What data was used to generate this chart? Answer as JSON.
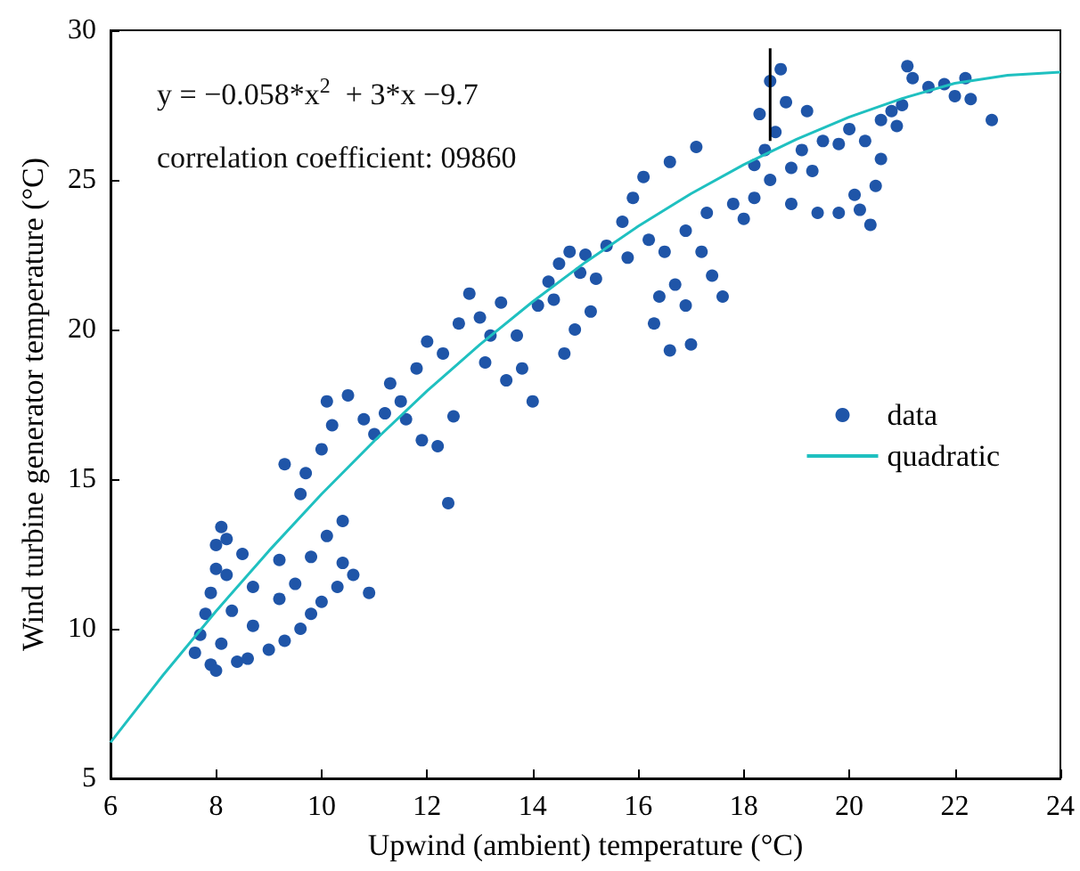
{
  "chart_data": {
    "type": "scatter",
    "xlabel": "Upwind (ambient) temperature (°C)",
    "ylabel": "Wind turbine generator temperature (°C)",
    "xlim": [
      6,
      24
    ],
    "xticks": [
      6,
      8,
      10,
      12,
      14,
      16,
      18,
      20,
      22,
      24
    ],
    "ylim": [
      5,
      30
    ],
    "yticks": [
      5,
      10,
      15,
      20,
      25,
      30
    ],
    "grid": false,
    "legend": "right",
    "marker": "circle",
    "annotations": [
      "y = −0.058*x$^{2}$  + 3*x −9.7",
      "correlation coefficient: 09860"
    ],
    "series": [
      {
        "name": "data",
        "color": "#1f55a8",
        "x": [
          7.6,
          7.7,
          7.8,
          7.9,
          8.0,
          8.0,
          8.1,
          8.2,
          8.2,
          8.3,
          8.1,
          7.9,
          8.0,
          8.4,
          8.6,
          9.0,
          9.3,
          9.6,
          9.8,
          10.0,
          10.3,
          10.6,
          10.9,
          10.4,
          9.5,
          9.2,
          8.7,
          8.5,
          8.7,
          9.2,
          9.8,
          10.1,
          10.4,
          9.6,
          9.3,
          9.7,
          10.0,
          10.2,
          10.1,
          10.5,
          10.8,
          11.0,
          11.2,
          11.5,
          11.3,
          11.8,
          11.6,
          11.9,
          12.2,
          12.5,
          12.4,
          12.0,
          12.3,
          12.6,
          12.8,
          13.0,
          13.2,
          13.4,
          13.1,
          13.5,
          13.8,
          14.0,
          13.7,
          14.1,
          14.3,
          14.5,
          14.7,
          14.4,
          14.9,
          15.0,
          15.2,
          14.8,
          14.6,
          15.1,
          15.4,
          15.7,
          15.9,
          16.1,
          15.8,
          16.2,
          16.5,
          16.7,
          16.4,
          16.9,
          17.2,
          17.4,
          16.3,
          16.6,
          17.0,
          16.9,
          17.6,
          17.3,
          17.8,
          18.0,
          18.2,
          18.4,
          18.3,
          18.5,
          18.7,
          18.8,
          18.6,
          18.9,
          18.5,
          18.2,
          19.1,
          19.2,
          19.3,
          19.5,
          19.8,
          18.9,
          19.4,
          19.8,
          20.2,
          20.4,
          20.1,
          20.5,
          20.6,
          20.3,
          20.0,
          20.8,
          21.0,
          21.2,
          21.5,
          21.1,
          21.8,
          22.0,
          22.2,
          22.3,
          22.7,
          20.6,
          20.9,
          16.6,
          17.1
        ],
        "values": [
          9.2,
          9.8,
          10.5,
          11.2,
          12.0,
          12.8,
          13.4,
          13.0,
          11.8,
          10.6,
          9.5,
          8.8,
          8.6,
          8.9,
          9.0,
          9.3,
          9.6,
          10.0,
          10.5,
          10.9,
          11.4,
          11.8,
          11.2,
          12.2,
          11.5,
          11.0,
          10.1,
          12.5,
          11.4,
          12.3,
          12.4,
          13.1,
          13.6,
          14.5,
          15.5,
          15.2,
          16.0,
          16.8,
          17.6,
          17.8,
          17.0,
          16.5,
          17.2,
          17.6,
          18.2,
          18.7,
          17.0,
          16.3,
          16.1,
          17.1,
          14.2,
          19.6,
          19.2,
          20.2,
          21.2,
          20.4,
          19.8,
          20.9,
          18.9,
          18.3,
          18.7,
          17.6,
          19.8,
          20.8,
          21.6,
          22.2,
          22.6,
          21.0,
          21.9,
          22.5,
          21.7,
          20.0,
          19.2,
          20.6,
          22.8,
          23.6,
          24.4,
          25.1,
          22.4,
          23.0,
          22.6,
          21.5,
          21.1,
          23.3,
          22.6,
          21.8,
          20.2,
          19.3,
          19.5,
          20.8,
          21.1,
          23.9,
          24.2,
          23.7,
          24.4,
          26.0,
          27.2,
          28.3,
          28.7,
          27.6,
          26.6,
          25.4,
          25.0,
          25.5,
          26.0,
          27.3,
          25.3,
          26.3,
          26.2,
          24.2,
          23.9,
          23.9,
          24.0,
          23.5,
          24.5,
          24.8,
          25.7,
          26.3,
          26.7,
          27.3,
          27.5,
          28.4,
          28.1,
          28.8,
          28.2,
          27.8,
          28.4,
          27.7,
          27.0,
          27.0,
          26.8,
          25.6,
          26.1
        ]
      },
      {
        "name": "quadratic",
        "type": "line",
        "color": "#1fc0c0",
        "marker": "none",
        "x": [
          6,
          7,
          8,
          9,
          10,
          11,
          12,
          13,
          14,
          15,
          16,
          17,
          18,
          19,
          20,
          21,
          22,
          23,
          24
        ],
        "values": [
          6.2,
          8.46,
          10.59,
          12.6,
          14.5,
          16.28,
          17.95,
          19.5,
          20.93,
          22.25,
          23.45,
          24.54,
          25.51,
          26.36,
          27.1,
          27.72,
          28.23,
          28.5,
          28.6
        ]
      },
      {
        "type": "line",
        "color": "#000000",
        "marker": "none",
        "x": [
          18.5,
          18.5
        ],
        "values": [
          26.3,
          29.4
        ]
      }
    ]
  }
}
